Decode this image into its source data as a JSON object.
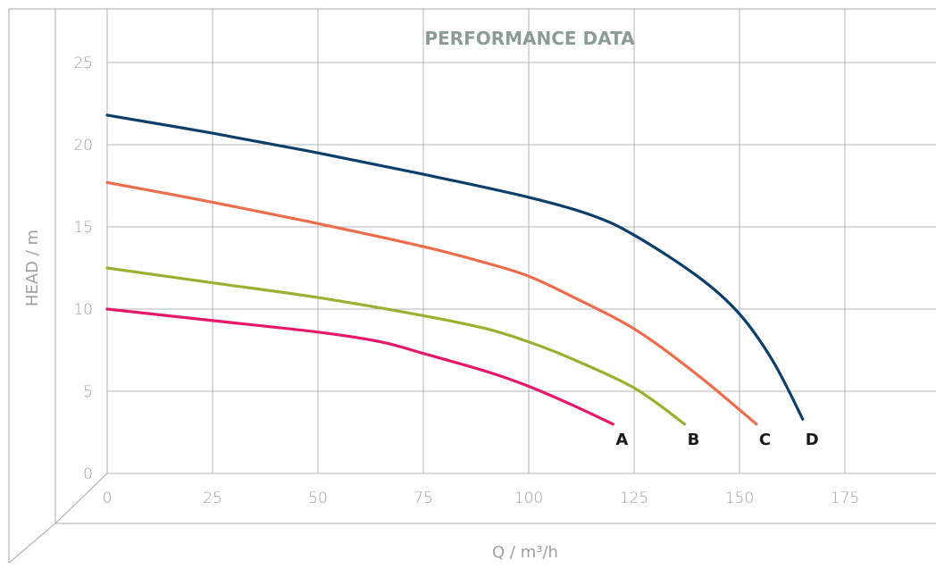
{
  "chart_data": {
    "type": "line",
    "title": "PERFORMANCE DATA",
    "xlabel": "Q / m³/h",
    "ylabel": "HEAD / m",
    "xlim": [
      0,
      200
    ],
    "ylim": [
      0,
      25
    ],
    "xticks": [
      0,
      25,
      50,
      75,
      100,
      125,
      150,
      175
    ],
    "yticks": [
      0,
      5,
      10,
      15,
      20,
      25
    ],
    "grid": true,
    "legend": "labels at curve ends",
    "series": [
      {
        "name": "A",
        "color": "#e5186a",
        "points": [
          [
            0,
            10.0
          ],
          [
            25,
            9.3
          ],
          [
            50,
            8.6
          ],
          [
            65,
            8.0
          ],
          [
            75,
            7.3
          ],
          [
            90,
            6.2
          ],
          [
            100,
            5.3
          ],
          [
            110,
            4.2
          ],
          [
            120,
            3.0
          ]
        ]
      },
      {
        "name": "B",
        "color": "#9bb030",
        "points": [
          [
            0,
            12.5
          ],
          [
            25,
            11.6
          ],
          [
            50,
            10.7
          ],
          [
            75,
            9.6
          ],
          [
            90,
            8.8
          ],
          [
            100,
            8.0
          ],
          [
            110,
            7.0
          ],
          [
            125,
            5.2
          ],
          [
            137,
            3.0
          ]
        ]
      },
      {
        "name": "C",
        "color": "#ec6d4b",
        "points": [
          [
            0,
            17.7
          ],
          [
            25,
            16.5
          ],
          [
            50,
            15.2
          ],
          [
            75,
            13.8
          ],
          [
            90,
            12.8
          ],
          [
            100,
            12.0
          ],
          [
            110,
            10.8
          ],
          [
            125,
            8.8
          ],
          [
            140,
            6.0
          ],
          [
            154,
            3.0
          ]
        ]
      },
      {
        "name": "D",
        "color": "#0e3f6a",
        "points": [
          [
            0,
            21.8
          ],
          [
            25,
            20.7
          ],
          [
            50,
            19.5
          ],
          [
            75,
            18.2
          ],
          [
            100,
            16.8
          ],
          [
            115,
            15.7
          ],
          [
            125,
            14.5
          ],
          [
            140,
            12.0
          ],
          [
            150,
            9.7
          ],
          [
            158,
            6.8
          ],
          [
            165,
            3.3
          ]
        ]
      }
    ]
  }
}
